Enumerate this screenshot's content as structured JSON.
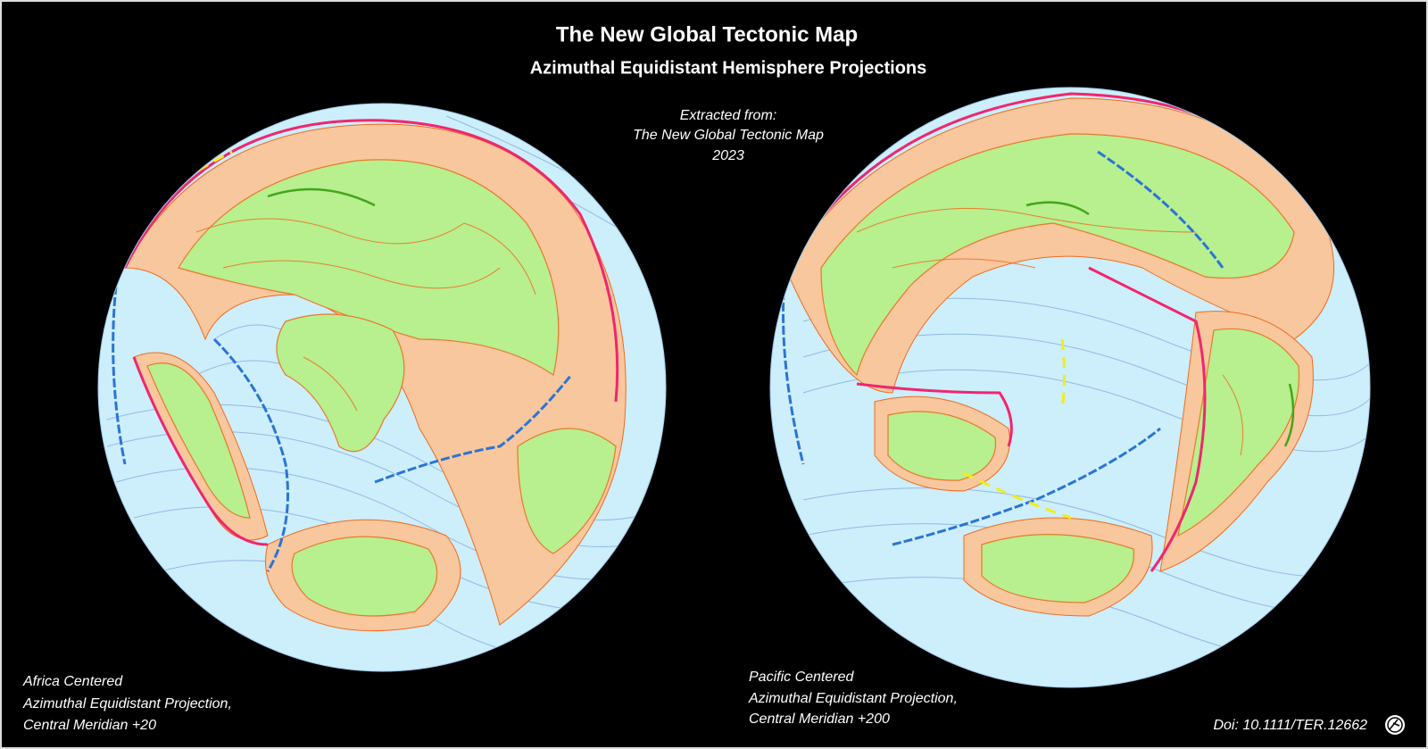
{
  "header": {
    "title": "The New Global Tectonic Map",
    "subtitle": "Azimuthal Equidistant Hemisphere Projections"
  },
  "source_note": [
    "Extracted from:",
    "The New Global Tectonic Map",
    "2023"
  ],
  "maps": [
    {
      "caption": [
        "Africa Centered",
        "Azimuthal Equidistant Projection,",
        "Central Meridian +20"
      ]
    },
    {
      "caption": [
        "Pacific Centered",
        "Azimuthal Equidistant Projection,",
        "Central Meridian +200"
      ]
    }
  ],
  "doi": "Doi: 10.1111/TER.12662"
}
